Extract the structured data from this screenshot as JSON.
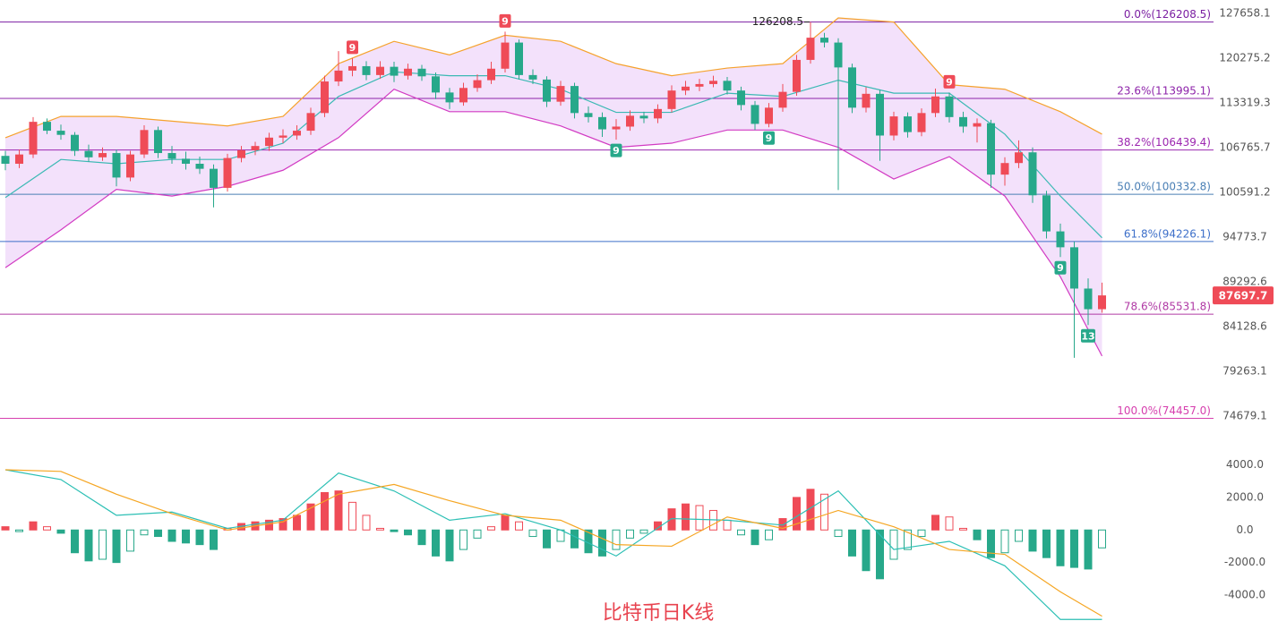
{
  "chart_data": [
    {
      "type": "candlestick",
      "title": "比特币日K线",
      "log_scale": true,
      "ylim": [
        71629,
        129960
      ],
      "yticks": [
        127658.1,
        120275.2,
        113319.3,
        106765.7,
        100591.2,
        94773.7,
        89292.6,
        84128.6,
        79263.1,
        74679.1
      ],
      "up_color": "#ef4b57",
      "down_color": "#27a88a",
      "candles": [
        [
          105600,
          106300,
          103600,
          104500
        ],
        [
          104500,
          106500,
          103900,
          105800
        ],
        [
          105800,
          111200,
          105300,
          110500
        ],
        [
          110500,
          111000,
          108700,
          109200
        ],
        [
          109200,
          110100,
          107900,
          108600
        ],
        [
          108600,
          109000,
          105600,
          106300
        ],
        [
          106300,
          107200,
          104800,
          105400
        ],
        [
          105400,
          106800,
          104900,
          106000
        ],
        [
          106000,
          106500,
          101400,
          102600
        ],
        [
          102600,
          106300,
          102100,
          105800
        ],
        [
          105800,
          110000,
          105300,
          109300
        ],
        [
          109300,
          109800,
          105300,
          106000
        ],
        [
          106000,
          107000,
          104500,
          105200
        ],
        [
          105200,
          106200,
          103700,
          104500
        ],
        [
          104500,
          105500,
          103100,
          103800
        ],
        [
          103800,
          104400,
          98600,
          101200
        ],
        [
          101200,
          105900,
          100700,
          105300
        ],
        [
          105300,
          107000,
          104700,
          106400
        ],
        [
          106400,
          107600,
          105700,
          107000
        ],
        [
          107000,
          108900,
          106300,
          108200
        ],
        [
          108200,
          109400,
          107400,
          108500
        ],
        [
          108500,
          110000,
          107900,
          109200
        ],
        [
          109200,
          112600,
          108600,
          111800
        ],
        [
          111800,
          117500,
          111200,
          116600
        ],
        [
          116600,
          121400,
          115900,
          118300
        ],
        [
          118300,
          120300,
          117400,
          119000
        ],
        [
          119000,
          119800,
          116800,
          117600
        ],
        [
          117600,
          119800,
          117000,
          118900
        ],
        [
          118900,
          119700,
          116500,
          117500
        ],
        [
          117500,
          119400,
          116900,
          118600
        ],
        [
          118600,
          119200,
          116700,
          117400
        ],
        [
          117400,
          118000,
          113900,
          114900
        ],
        [
          114900,
          115600,
          112400,
          113400
        ],
        [
          113400,
          116400,
          112900,
          115600
        ],
        [
          115600,
          117700,
          115000,
          116800
        ],
        [
          116800,
          119700,
          116200,
          118600
        ],
        [
          118600,
          124600,
          118000,
          122800
        ],
        [
          122800,
          123300,
          116900,
          117600
        ],
        [
          117600,
          118500,
          116200,
          116900
        ],
        [
          116900,
          117400,
          112700,
          113500
        ],
        [
          113500,
          116700,
          112900,
          115900
        ],
        [
          115900,
          116400,
          111000,
          111800
        ],
        [
          111800,
          112800,
          110400,
          111200
        ],
        [
          111200,
          111900,
          108300,
          109400
        ],
        [
          109400,
          110900,
          107900,
          109800
        ],
        [
          109800,
          112200,
          109200,
          111400
        ],
        [
          111400,
          112000,
          110300,
          111000
        ],
        [
          111000,
          113100,
          110300,
          112400
        ],
        [
          112400,
          116000,
          111900,
          115200
        ],
        [
          115200,
          116700,
          114500,
          115800
        ],
        [
          115800,
          117000,
          115100,
          116200
        ],
        [
          116200,
          117500,
          115700,
          116700
        ],
        [
          116700,
          117300,
          114600,
          115200
        ],
        [
          115200,
          115800,
          112200,
          113000
        ],
        [
          113000,
          113600,
          109300,
          110200
        ],
        [
          110200,
          113300,
          109700,
          112600
        ],
        [
          112600,
          116200,
          112000,
          115000
        ],
        [
          115000,
          120800,
          114400,
          120000
        ],
        [
          120000,
          126208.5,
          119400,
          123600
        ],
        [
          123600,
          124400,
          122000,
          122800
        ],
        [
          122800,
          123500,
          100900,
          118800
        ],
        [
          118800,
          119400,
          111800,
          112600
        ],
        [
          112600,
          115700,
          111900,
          114700
        ],
        [
          114700,
          115300,
          104900,
          108500
        ],
        [
          108500,
          112000,
          107800,
          111300
        ],
        [
          111300,
          111900,
          108200,
          109000
        ],
        [
          109000,
          112500,
          108400,
          111800
        ],
        [
          111800,
          115500,
          111200,
          114300
        ],
        [
          114300,
          114900,
          110400,
          111200
        ],
        [
          111200,
          112000,
          108900,
          109800
        ],
        [
          109800,
          111000,
          107500,
          110300
        ],
        [
          110300,
          110800,
          101200,
          103000
        ],
        [
          103000,
          105400,
          101500,
          104600
        ],
        [
          104600,
          107800,
          103900,
          106100
        ],
        [
          106100,
          106800,
          99200,
          100200
        ],
        [
          100200,
          100800,
          94600,
          95500
        ],
        [
          95500,
          96500,
          92300,
          93500
        ],
        [
          93500,
          94200,
          80700,
          88500
        ],
        [
          88500,
          89700,
          84300,
          86100
        ],
        [
          86100,
          89200,
          85700,
          87697.7
        ]
      ],
      "band_x": [
        0,
        4,
        8,
        12,
        16,
        20,
        24,
        28,
        32,
        36,
        40,
        44,
        48,
        52,
        56,
        60,
        64,
        68,
        72,
        76,
        79
      ],
      "band_fill": "#f3e1fb",
      "bands": [
        {
          "color": "#f5a22d",
          "values": [
            108180,
            111300,
            111300,
            110600,
            109900,
            111300,
            119400,
            123000,
            120800,
            124000,
            123000,
            119400,
            117500,
            118700,
            119400,
            126900,
            126200,
            116100,
            115400,
            112000,
            108700
          ]
        },
        {
          "color": "#3bb9b4",
          "values": [
            99900,
            105100,
            104500,
            105100,
            105100,
            107400,
            114300,
            118100,
            117500,
            117500,
            115400,
            111900,
            111900,
            114800,
            114300,
            116800,
            114800,
            114800,
            108700,
            100100,
            94700
          ]
        },
        {
          "color": "#d23bc3",
          "values": [
            91000,
            95700,
            101000,
            100100,
            101400,
            103600,
            108200,
            115400,
            112000,
            112000,
            109900,
            106800,
            107400,
            109300,
            109300,
            106800,
            102400,
            105500,
            100100,
            89900,
            80900
          ]
        }
      ],
      "fib_levels": [
        {
          "value": 126208.5,
          "label": "0.0%(126208.5)",
          "color": "#7b1fa2"
        },
        {
          "value": 113995.1,
          "label": "23.6%(113995.1)",
          "color": "#8e24aa"
        },
        {
          "value": 106439.4,
          "label": "38.2%(106439.4)",
          "color": "#9c27b0"
        },
        {
          "value": 100332.8,
          "label": "50.0%(100332.8)",
          "color": "#4a7fb5"
        },
        {
          "value": 94226.1,
          "label": "61.8%(94226.1)",
          "color": "#3d6fc9"
        },
        {
          "value": 85531.8,
          "label": "78.6%(85531.8)",
          "color": "#b03aa5"
        },
        {
          "value": 74457.0,
          "label": "100.0%(74457.0)",
          "color": "#d63fae"
        }
      ],
      "td_markers": [
        {
          "candle": 25,
          "label": "9",
          "side": "up"
        },
        {
          "candle": 36,
          "label": "9",
          "side": "up"
        },
        {
          "candle": 68,
          "label": "9",
          "side": "up"
        },
        {
          "candle": 44,
          "label": "9",
          "side": "down"
        },
        {
          "candle": 55,
          "label": "9",
          "side": "down"
        },
        {
          "candle": 76,
          "label": "9",
          "side": "down"
        },
        {
          "candle": 78,
          "label": "13",
          "side": "down"
        }
      ]
    },
    {
      "type": "macd",
      "ylim": [
        -6200,
        4800
      ],
      "yticks": [
        {
          "value": 4000,
          "label": "4000.0"
        },
        {
          "value": 2000,
          "label": "2000.0"
        },
        {
          "value": 0,
          "label": "0.0"
        },
        {
          "value": -2000,
          "label": "-2000.0"
        },
        {
          "value": -4000,
          "label": "-4000.0"
        }
      ],
      "up_color": "#ef4b57",
      "down_color": "#27a88a",
      "histogram": [
        200,
        -100,
        500,
        200,
        -200,
        -1400,
        -1900,
        -1800,
        -2000,
        -1300,
        -300,
        -400,
        -700,
        -800,
        -900,
        -1200,
        100,
        400,
        500,
        600,
        700,
        900,
        1600,
        2300,
        2400,
        1700,
        900,
        100,
        -100,
        -300,
        -900,
        -1600,
        -1900,
        -1200,
        -500,
        200,
        900,
        500,
        -400,
        -1100,
        -700,
        -1100,
        -1400,
        -1600,
        -1200,
        -500,
        -200,
        500,
        1300,
        1600,
        1500,
        1200,
        600,
        -300,
        -900,
        -600,
        700,
        2000,
        2500,
        2200,
        -400,
        -1600,
        -2500,
        -3000,
        -1800,
        -1200,
        -400,
        900,
        800,
        100,
        -600,
        -1700,
        -1400,
        -700,
        -1300,
        -1700,
        -2200,
        -2300,
        -2400,
        -1100
      ],
      "x": [
        0,
        4,
        8,
        12,
        16,
        20,
        24,
        28,
        32,
        36,
        40,
        44,
        48,
        52,
        56,
        60,
        64,
        68,
        72,
        76,
        79
      ],
      "series": [
        {
          "color": "#2bbfb4",
          "values": [
            3700,
            3100,
            900,
            1100,
            100,
            600,
            3500,
            2400,
            600,
            1000,
            0,
            -1600,
            700,
            600,
            300,
            2400,
            -1200,
            -700,
            -2200,
            -5500,
            -5500
          ]
        },
        {
          "color": "#f5a623",
          "values": [
            3700,
            3600,
            2200,
            1000,
            0,
            500,
            2200,
            2800,
            1800,
            900,
            600,
            -900,
            -1000,
            800,
            100,
            1200,
            200,
            -1200,
            -1500,
            -3800,
            -5300
          ]
        }
      ]
    }
  ]
}
